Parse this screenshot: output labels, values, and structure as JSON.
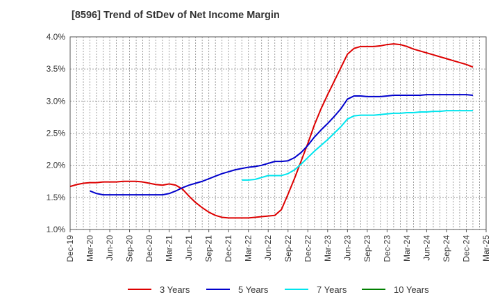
{
  "title": "[8596]  Trend of StDev of Net Income Margin",
  "colors": {
    "3y": "#dd0000",
    "5y": "#0000cc",
    "7y": "#00e5ee",
    "10y": "#007f00",
    "grid": "#888888",
    "axis": "#555555"
  },
  "chart_data": {
    "type": "line",
    "title": "[8596]  Trend of StDev of Net Income Margin",
    "xlabel": "",
    "ylabel": "",
    "ylim": [
      1.0,
      4.0
    ],
    "y_ticks": [
      "1.0%",
      "1.5%",
      "2.0%",
      "2.5%",
      "3.0%",
      "3.5%",
      "4.0%"
    ],
    "y_tick_values": [
      1.0,
      1.5,
      2.0,
      2.5,
      3.0,
      3.5,
      4.0
    ],
    "x_ticks": [
      "Dec-19",
      "Mar-20",
      "Jun-20",
      "Sep-20",
      "Dec-20",
      "Mar-21",
      "Jun-21",
      "Sep-21",
      "Dec-21",
      "Mar-22",
      "Jun-22",
      "Sep-22",
      "Dec-22",
      "Mar-23",
      "Jun-23",
      "Sep-23",
      "Dec-23",
      "Mar-24",
      "Jun-24",
      "Sep-24",
      "Dec-24",
      "Mar-25"
    ],
    "x_months": [
      "Dec-19",
      "Jan-20",
      "Feb-20",
      "Mar-20",
      "Apr-20",
      "May-20",
      "Jun-20",
      "Jul-20",
      "Aug-20",
      "Sep-20",
      "Oct-20",
      "Nov-20",
      "Dec-20",
      "Jan-21",
      "Feb-21",
      "Mar-21",
      "Apr-21",
      "May-21",
      "Jun-21",
      "Jul-21",
      "Aug-21",
      "Sep-21",
      "Oct-21",
      "Nov-21",
      "Dec-21",
      "Jan-22",
      "Feb-22",
      "Mar-22",
      "Apr-22",
      "May-22",
      "Jun-22",
      "Jul-22",
      "Aug-22",
      "Sep-22",
      "Oct-22",
      "Nov-22",
      "Dec-22",
      "Jan-23",
      "Feb-23",
      "Mar-23",
      "Apr-23",
      "May-23",
      "Jun-23",
      "Jul-23",
      "Aug-23",
      "Sep-23",
      "Oct-23",
      "Nov-23",
      "Dec-23",
      "Jan-24",
      "Feb-24",
      "Mar-24",
      "Apr-24",
      "May-24",
      "Jun-24",
      "Jul-24",
      "Aug-24",
      "Sep-24",
      "Oct-24",
      "Nov-24",
      "Dec-24",
      "Jan-25",
      "Feb-25",
      "Mar-25"
    ],
    "grid": true,
    "legend_position": "bottom",
    "series": [
      {
        "name": "3 Years",
        "color_key": "3y",
        "points": [
          [
            "Dec-19",
            1.67
          ],
          [
            "Jan-20",
            1.7
          ],
          [
            "Feb-20",
            1.72
          ],
          [
            "Mar-20",
            1.73
          ],
          [
            "Apr-20",
            1.73
          ],
          [
            "May-20",
            1.74
          ],
          [
            "Jun-20",
            1.74
          ],
          [
            "Jul-20",
            1.74
          ],
          [
            "Aug-20",
            1.75
          ],
          [
            "Sep-20",
            1.75
          ],
          [
            "Oct-20",
            1.75
          ],
          [
            "Nov-20",
            1.74
          ],
          [
            "Dec-20",
            1.72
          ],
          [
            "Jan-21",
            1.7
          ],
          [
            "Feb-21",
            1.69
          ],
          [
            "Mar-21",
            1.71
          ],
          [
            "Apr-21",
            1.69
          ],
          [
            "May-21",
            1.63
          ],
          [
            "Jun-21",
            1.52
          ],
          [
            "Jul-21",
            1.42
          ],
          [
            "Aug-21",
            1.34
          ],
          [
            "Sep-21",
            1.27
          ],
          [
            "Oct-21",
            1.22
          ],
          [
            "Nov-21",
            1.19
          ],
          [
            "Dec-21",
            1.18
          ],
          [
            "Jan-22",
            1.18
          ],
          [
            "Feb-22",
            1.18
          ],
          [
            "Mar-22",
            1.18
          ],
          [
            "Apr-22",
            1.19
          ],
          [
            "May-22",
            1.2
          ],
          [
            "Jun-22",
            1.21
          ],
          [
            "Jul-22",
            1.22
          ],
          [
            "Aug-22",
            1.31
          ],
          [
            "Sep-22",
            1.55
          ],
          [
            "Oct-22",
            1.8
          ],
          [
            "Nov-22",
            2.07
          ],
          [
            "Dec-22",
            2.34
          ],
          [
            "Jan-23",
            2.63
          ],
          [
            "Feb-23",
            2.88
          ],
          [
            "Mar-23",
            3.1
          ],
          [
            "Apr-23",
            3.31
          ],
          [
            "May-23",
            3.52
          ],
          [
            "Jun-23",
            3.73
          ],
          [
            "Jul-23",
            3.82
          ],
          [
            "Aug-23",
            3.85
          ],
          [
            "Sep-23",
            3.85
          ],
          [
            "Oct-23",
            3.85
          ],
          [
            "Nov-23",
            3.86
          ],
          [
            "Dec-23",
            3.88
          ],
          [
            "Jan-24",
            3.89
          ],
          [
            "Feb-24",
            3.88
          ],
          [
            "Mar-24",
            3.85
          ],
          [
            "Apr-24",
            3.81
          ],
          [
            "May-24",
            3.78
          ],
          [
            "Jun-24",
            3.75
          ],
          [
            "Jul-24",
            3.72
          ],
          [
            "Aug-24",
            3.69
          ],
          [
            "Sep-24",
            3.66
          ],
          [
            "Oct-24",
            3.63
          ],
          [
            "Nov-24",
            3.6
          ],
          [
            "Dec-24",
            3.57
          ],
          [
            "Jan-25",
            3.53
          ]
        ]
      },
      {
        "name": "5 Years",
        "color_key": "5y",
        "points": [
          [
            "Mar-20",
            1.6
          ],
          [
            "Apr-20",
            1.56
          ],
          [
            "May-20",
            1.54
          ],
          [
            "Jun-20",
            1.54
          ],
          [
            "Jul-20",
            1.54
          ],
          [
            "Aug-20",
            1.54
          ],
          [
            "Sep-20",
            1.54
          ],
          [
            "Oct-20",
            1.54
          ],
          [
            "Nov-20",
            1.54
          ],
          [
            "Dec-20",
            1.54
          ],
          [
            "Jan-21",
            1.54
          ],
          [
            "Feb-21",
            1.54
          ],
          [
            "Mar-21",
            1.56
          ],
          [
            "Apr-21",
            1.6
          ],
          [
            "May-21",
            1.65
          ],
          [
            "Jun-21",
            1.69
          ],
          [
            "Jul-21",
            1.72
          ],
          [
            "Aug-21",
            1.75
          ],
          [
            "Sep-21",
            1.79
          ],
          [
            "Oct-21",
            1.83
          ],
          [
            "Nov-21",
            1.87
          ],
          [
            "Dec-21",
            1.9
          ],
          [
            "Jan-22",
            1.93
          ],
          [
            "Feb-22",
            1.95
          ],
          [
            "Mar-22",
            1.97
          ],
          [
            "Apr-22",
            1.98
          ],
          [
            "May-22",
            2.0
          ],
          [
            "Jun-22",
            2.03
          ],
          [
            "Jul-22",
            2.06
          ],
          [
            "Aug-22",
            2.06
          ],
          [
            "Sep-22",
            2.07
          ],
          [
            "Oct-22",
            2.12
          ],
          [
            "Nov-22",
            2.2
          ],
          [
            "Dec-22",
            2.31
          ],
          [
            "Jan-23",
            2.44
          ],
          [
            "Feb-23",
            2.55
          ],
          [
            "Mar-23",
            2.65
          ],
          [
            "Apr-23",
            2.76
          ],
          [
            "May-23",
            2.88
          ],
          [
            "Jun-23",
            3.03
          ],
          [
            "Jul-23",
            3.08
          ],
          [
            "Aug-23",
            3.08
          ],
          [
            "Sep-23",
            3.07
          ],
          [
            "Oct-23",
            3.07
          ],
          [
            "Nov-23",
            3.07
          ],
          [
            "Dec-23",
            3.08
          ],
          [
            "Jan-24",
            3.09
          ],
          [
            "Feb-24",
            3.09
          ],
          [
            "Mar-24",
            3.09
          ],
          [
            "Apr-24",
            3.09
          ],
          [
            "May-24",
            3.09
          ],
          [
            "Jun-24",
            3.1
          ],
          [
            "Jul-24",
            3.1
          ],
          [
            "Aug-24",
            3.1
          ],
          [
            "Sep-24",
            3.1
          ],
          [
            "Oct-24",
            3.1
          ],
          [
            "Nov-24",
            3.1
          ],
          [
            "Dec-24",
            3.1
          ],
          [
            "Jan-25",
            3.09
          ]
        ]
      },
      {
        "name": "7 Years",
        "color_key": "7y",
        "points": [
          [
            "Feb-22",
            1.77
          ],
          [
            "Mar-22",
            1.77
          ],
          [
            "Apr-22",
            1.78
          ],
          [
            "May-22",
            1.81
          ],
          [
            "Jun-22",
            1.84
          ],
          [
            "Jul-22",
            1.84
          ],
          [
            "Aug-22",
            1.84
          ],
          [
            "Sep-22",
            1.87
          ],
          [
            "Oct-22",
            1.93
          ],
          [
            "Nov-22",
            2.02
          ],
          [
            "Dec-22",
            2.12
          ],
          [
            "Jan-23",
            2.22
          ],
          [
            "Feb-23",
            2.31
          ],
          [
            "Mar-23",
            2.4
          ],
          [
            "Apr-23",
            2.5
          ],
          [
            "May-23",
            2.6
          ],
          [
            "Jun-23",
            2.72
          ],
          [
            "Jul-23",
            2.77
          ],
          [
            "Aug-23",
            2.78
          ],
          [
            "Sep-23",
            2.78
          ],
          [
            "Oct-23",
            2.78
          ],
          [
            "Nov-23",
            2.79
          ],
          [
            "Dec-23",
            2.8
          ],
          [
            "Jan-24",
            2.81
          ],
          [
            "Feb-24",
            2.81
          ],
          [
            "Mar-24",
            2.82
          ],
          [
            "Apr-24",
            2.82
          ],
          [
            "May-24",
            2.83
          ],
          [
            "Jun-24",
            2.83
          ],
          [
            "Jul-24",
            2.84
          ],
          [
            "Aug-24",
            2.84
          ],
          [
            "Sep-24",
            2.85
          ],
          [
            "Oct-24",
            2.85
          ],
          [
            "Nov-24",
            2.85
          ],
          [
            "Dec-24",
            2.85
          ],
          [
            "Jan-25",
            2.85
          ]
        ]
      },
      {
        "name": "10 Years",
        "color_key": "10y",
        "points": []
      }
    ]
  }
}
